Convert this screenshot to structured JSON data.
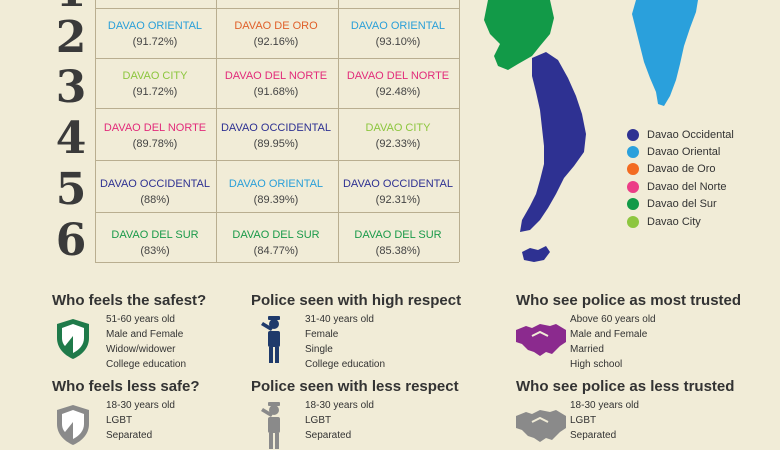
{
  "ranks": [
    {
      "number": "2",
      "cells": [
        {
          "name": "DAVAO ORIENTAL",
          "pct": "(91.72%)",
          "color": "#2a9fd8"
        },
        {
          "name": "DAVAO DE ORO",
          "pct": "(92.16%)",
          "color": "#e0602a"
        },
        {
          "name": "DAVAO ORIENTAL",
          "pct": "(93.10%)",
          "color": "#2a9fd8"
        }
      ]
    },
    {
      "number": "3",
      "cells": [
        {
          "name": "DAVAO CITY",
          "pct": "(91.72%)",
          "color": "#8cc63e"
        },
        {
          "name": "DAVAO DEL NORTE",
          "pct": "(91.68%)",
          "color": "#e22b7a"
        },
        {
          "name": "DAVAO DEL NORTE",
          "pct": "(92.48%)",
          "color": "#e22b7a"
        }
      ]
    },
    {
      "number": "4",
      "cells": [
        {
          "name": "DAVAO DEL NORTE",
          "pct": "(89.78%)",
          "color": "#e22b7a"
        },
        {
          "name": "DAVAO OCCIDENTAL",
          "pct": "(89.95%)",
          "color": "#2e3192"
        },
        {
          "name": "DAVAO CITY",
          "pct": "(92.33%)",
          "color": "#8cc63e"
        }
      ]
    },
    {
      "number": "5",
      "cells": [
        {
          "name": "DAVAO OCCIDENTAL",
          "pct": "(88%)",
          "color": "#2e3192"
        },
        {
          "name": "DAVAO ORIENTAL",
          "pct": "(89.39%)",
          "color": "#2a9fd8"
        },
        {
          "name": "DAVAO OCCIDENTAL",
          "pct": "(92.31%)",
          "color": "#2e3192"
        }
      ]
    },
    {
      "number": "6",
      "cells": [
        {
          "name": "DAVAO DEL SUR",
          "pct": "(83%)",
          "color": "#1a9a4a"
        },
        {
          "name": "DAVAO DEL SUR",
          "pct": "(84.77%)",
          "color": "#1a9a4a"
        },
        {
          "name": "DAVAO DEL SUR",
          "pct": "(85.38%)",
          "color": "#1a9a4a"
        }
      ]
    }
  ],
  "legend": [
    {
      "label": "Davao Occidental",
      "color": "#2e3192"
    },
    {
      "label": "Davao Oriental",
      "color": "#2aa0dc"
    },
    {
      "label": "Davao de Oro",
      "color": "#f36b21"
    },
    {
      "label": "Davao del Norte",
      "color": "#ec3d87"
    },
    {
      "label": "Davao del Sur",
      "color": "#129a48"
    },
    {
      "label": "Davao City",
      "color": "#8dc63f"
    }
  ],
  "panels": [
    {
      "title": "Who feels the safest?",
      "icon": "shield-icon",
      "icon_color": "#1f7a4a",
      "lines": [
        "51-60 years old",
        "Male and Female",
        "Widow/widower",
        "College education"
      ]
    },
    {
      "title": "Police seen with high respect",
      "icon": "saluting-officer-icon",
      "icon_color": "#1f3a6b",
      "lines": [
        "31-40 years old",
        "Female",
        "Single",
        "College education"
      ]
    },
    {
      "title": "Who see police as most trusted",
      "icon": "handshake-icon",
      "icon_color": "#8b2a8e",
      "lines": [
        "Above 60 years old",
        "Male and Female",
        "Married",
        "High school"
      ]
    },
    {
      "title": "Who feels less safe?",
      "icon": "shield-icon",
      "icon_color": "#8a8a8a",
      "lines": [
        "18-30 years old",
        "LGBT",
        "Separated"
      ]
    },
    {
      "title": "Police seen with less respect",
      "icon": "saluting-officer-icon",
      "icon_color": "#8a8a8a",
      "lines": [
        "18-30 years old",
        "LGBT",
        "Separated"
      ]
    },
    {
      "title": "Who see police as less trusted",
      "icon": "handshake-icon",
      "icon_color": "#8a8a8a",
      "lines": [
        "18-30 years old",
        "LGBT",
        "Separated"
      ]
    }
  ]
}
